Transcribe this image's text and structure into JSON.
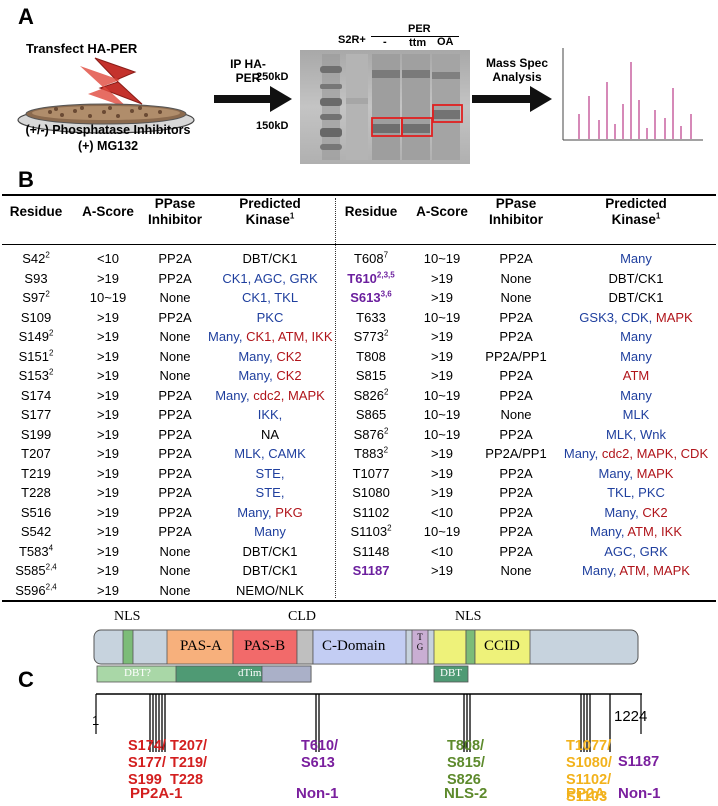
{
  "panel_a": {
    "letter": "A",
    "transfect": "Transfect HA-PER",
    "dish_caption_1": "(+/-) Phosphatase Inhibitors",
    "dish_caption_2": "(+) MG132",
    "ip_label_1": "IP HA-",
    "ip_label_2": "PER",
    "gel_lane_s2r": "S2R+",
    "gel_per": "PER",
    "gel_lane_minus": "-",
    "gel_lane_ttm": "ttm",
    "gel_lane_oa": "OA",
    "marker_250": "250kD",
    "marker_150": "150kD",
    "ms_label_1": "Mass Spec",
    "ms_label_2": "Analysis",
    "colors": {
      "box": "#e02020",
      "peaks": "#d689b8",
      "gel_bg": "#b9b9b9"
    }
  },
  "panel_b": {
    "letter": "B",
    "headers": {
      "residue": "Residue",
      "ascore": "A-Score",
      "ppase_1": "PPase",
      "ppase_2": "Inhibitor",
      "kinase_1": "Predicted",
      "kinase_2": "Kinase",
      "kinase_sup": "1"
    },
    "left_rows": [
      {
        "res": "S42",
        "sup": "2",
        "a": "<10",
        "p": "PP2A",
        "k": [
          [
            "DBT/CK1",
            "k"
          ]
        ]
      },
      {
        "res": "S93",
        "sup": "",
        "a": ">19",
        "p": "PP2A",
        "k": [
          [
            "CK1, AGC, GRK",
            "b"
          ]
        ]
      },
      {
        "res": "S97",
        "sup": "2",
        "a": "10~19",
        "p": "None",
        "k": [
          [
            "CK1, TKL",
            "b"
          ]
        ]
      },
      {
        "res": "S109",
        "sup": "",
        "a": ">19",
        "p": "PP2A",
        "k": [
          [
            "PKC",
            "b"
          ]
        ]
      },
      {
        "res": "S149",
        "sup": "2",
        "a": ">19",
        "p": "None",
        "k": [
          [
            "Many, ",
            "b"
          ],
          [
            "CK1, ATM, IKK",
            "r"
          ]
        ]
      },
      {
        "res": "S151",
        "sup": "2",
        "a": ">19",
        "p": "None",
        "k": [
          [
            "Many, ",
            "b"
          ],
          [
            "CK2",
            "r"
          ]
        ]
      },
      {
        "res": "S153",
        "sup": "2",
        "a": ">19",
        "p": "None",
        "k": [
          [
            "Many, ",
            "b"
          ],
          [
            "CK2",
            "r"
          ]
        ]
      },
      {
        "res": "S174",
        "sup": "",
        "a": ">19",
        "p": "PP2A",
        "k": [
          [
            "Many, ",
            "b"
          ],
          [
            "cdc2, MAPK",
            "r"
          ]
        ]
      },
      {
        "res": "S177",
        "sup": "",
        "a": ">19",
        "p": "PP2A",
        "k": [
          [
            "IKK,",
            "b"
          ]
        ]
      },
      {
        "res": "S199",
        "sup": "",
        "a": ">19",
        "p": "PP2A",
        "k": [
          [
            "NA",
            "k"
          ]
        ]
      },
      {
        "res": "T207",
        "sup": "",
        "a": ">19",
        "p": "PP2A",
        "k": [
          [
            "MLK, CAMK",
            "b"
          ]
        ]
      },
      {
        "res": "T219",
        "sup": "",
        "a": ">19",
        "p": "PP2A",
        "k": [
          [
            "STE,",
            "b"
          ]
        ]
      },
      {
        "res": "T228",
        "sup": "",
        "a": ">19",
        "p": "PP2A",
        "k": [
          [
            "STE,",
            "b"
          ]
        ]
      },
      {
        "res": "S516",
        "sup": "",
        "a": ">19",
        "p": "PP2A",
        "k": [
          [
            "Many, ",
            "b"
          ],
          [
            "PKG",
            "r"
          ]
        ]
      },
      {
        "res": "S542",
        "sup": "",
        "a": ">19",
        "p": "PP2A",
        "k": [
          [
            "Many",
            "b"
          ]
        ]
      },
      {
        "res": "T583",
        "sup": "4",
        "a": ">19",
        "p": "None",
        "k": [
          [
            "DBT/CK1",
            "k"
          ]
        ]
      },
      {
        "res": "S585",
        "sup": "2,4",
        "a": ">19",
        "p": "None",
        "k": [
          [
            "DBT/CK1",
            "k"
          ]
        ]
      },
      {
        "res": "S596",
        "sup": "2,4",
        "a": ">19",
        "p": "None",
        "k": [
          [
            "NEMO/NLK",
            "k"
          ]
        ]
      }
    ],
    "right_rows": [
      {
        "res": "T608",
        "sup": "7",
        "hl": false,
        "a": "10~19",
        "p": "PP2A",
        "k": [
          [
            "Many",
            "b"
          ]
        ]
      },
      {
        "res": "T610",
        "sup": "2,3,5",
        "hl": true,
        "a": ">19",
        "p": "None",
        "k": [
          [
            "DBT/CK1",
            "k"
          ]
        ]
      },
      {
        "res": "S613",
        "sup": "3,6",
        "hl": true,
        "a": ">19",
        "p": "None",
        "k": [
          [
            "DBT/CK1",
            "k"
          ]
        ]
      },
      {
        "res": "T633",
        "sup": "",
        "hl": false,
        "a": "10~19",
        "p": "PP2A",
        "k": [
          [
            "GSK3, CDK, ",
            "b"
          ],
          [
            "MAPK",
            "r"
          ]
        ]
      },
      {
        "res": "S773",
        "sup": "2",
        "hl": false,
        "a": ">19",
        "p": "PP2A",
        "k": [
          [
            "Many",
            "b"
          ]
        ]
      },
      {
        "res": "T808",
        "sup": "",
        "hl": false,
        "a": ">19",
        "p": "PP2A/PP1",
        "k": [
          [
            "Many",
            "b"
          ]
        ]
      },
      {
        "res": "S815",
        "sup": "",
        "hl": false,
        "a": ">19",
        "p": "PP2A",
        "k": [
          [
            "ATM",
            "r"
          ]
        ]
      },
      {
        "res": "S826",
        "sup": "2",
        "hl": false,
        "a": "10~19",
        "p": "PP2A",
        "k": [
          [
            "Many",
            "b"
          ]
        ]
      },
      {
        "res": "S865",
        "sup": "",
        "hl": false,
        "a": "10~19",
        "p": "None",
        "k": [
          [
            "MLK",
            "b"
          ]
        ]
      },
      {
        "res": "S876",
        "sup": "2",
        "hl": false,
        "a": "10~19",
        "p": "PP2A",
        "k": [
          [
            "MLK, Wnk",
            "b"
          ]
        ]
      },
      {
        "res": "T883",
        "sup": "2",
        "hl": false,
        "a": ">19",
        "p": "PP2A/PP1",
        "k": [
          [
            "Many, ",
            "b"
          ],
          [
            "cdc2, MAPK, CDK",
            "r"
          ]
        ]
      },
      {
        "res": "T1077",
        "sup": "",
        "hl": false,
        "a": ">19",
        "p": "PP2A",
        "k": [
          [
            "Many, ",
            "b"
          ],
          [
            "MAPK",
            "r"
          ]
        ]
      },
      {
        "res": "S1080",
        "sup": "",
        "hl": false,
        "a": ">19",
        "p": "PP2A",
        "k": [
          [
            "TKL, PKC",
            "b"
          ]
        ]
      },
      {
        "res": "S1102",
        "sup": "",
        "hl": false,
        "a": "<10",
        "p": "PP2A",
        "k": [
          [
            "Many, ",
            "b"
          ],
          [
            "CK2",
            "r"
          ]
        ]
      },
      {
        "res": "S1103",
        "sup": "2",
        "hl": false,
        "a": "10~19",
        "p": "PP2A",
        "k": [
          [
            "Many, ",
            "b"
          ],
          [
            "ATM, IKK",
            "r"
          ]
        ]
      },
      {
        "res": "S1148",
        "sup": "",
        "hl": false,
        "a": "<10",
        "p": "PP2A",
        "k": [
          [
            "AGC, GRK",
            "b"
          ]
        ]
      },
      {
        "res": "S1187",
        "sup": "",
        "hl": true,
        "a": ">19",
        "p": "None",
        "k": [
          [
            "Many, ",
            "b"
          ],
          [
            "ATM, MAPK",
            "r"
          ]
        ]
      }
    ],
    "colors": {
      "blue": "#1f3f9e",
      "red": "#b0141a",
      "purple": "#6b1f9e"
    }
  },
  "panel_c": {
    "letter": "C",
    "domains": {
      "nls_left": "NLS",
      "pas_a": "PAS-A",
      "pas_b": "PAS-B",
      "cld": "CLD",
      "c_domain": "C-Domain",
      "tg": "TG",
      "nls_right": "NLS",
      "ccid": "CCID",
      "dbt_q": "DBT?",
      "dtim": "dTim",
      "dbt": "DBT"
    },
    "axis_start": "1",
    "axis_end": "1224",
    "groups": [
      {
        "lines": [
          "S174/",
          "S177/",
          "S199"
        ],
        "color": "#d31f1f"
      },
      {
        "lines": [
          "T207/",
          "T219/",
          "T228"
        ],
        "color": "#d31f1f"
      },
      {
        "lines": [
          "T610/",
          "S613"
        ],
        "color": "#7a1f9e"
      },
      {
        "lines": [
          "T808/",
          "S815/",
          "S826"
        ],
        "color": "#5d8a2c"
      },
      {
        "lines": [
          "T1077/",
          "S1080/",
          "S1102/",
          "S1103"
        ],
        "color": "#f2b21c"
      },
      {
        "lines": [
          "S1187"
        ],
        "color": "#7a1f9e"
      }
    ],
    "group_labels": [
      {
        "text": "PP2A-1",
        "color": "#d31f1f"
      },
      {
        "text": "Non-1",
        "color": "#7a1f9e"
      },
      {
        "text": "NLS-2",
        "color": "#5d8a2c"
      },
      {
        "text": "PP2A",
        "color": "#f2b21c"
      },
      {
        "text": "Non-1",
        "color": "#7a1f9e"
      }
    ]
  }
}
